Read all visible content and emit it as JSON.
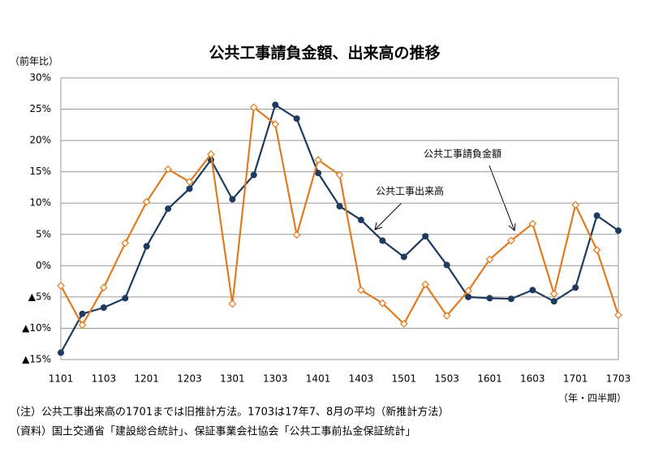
{
  "chart_data": {
    "type": "line",
    "title": "公共工事請負金額、出来高の推移",
    "y_axis_label": "（前年比）",
    "x_axis_label": "（年・四半期）",
    "notes": [
      "（注）公共工事出来高の1701までは旧推計方法。1703は17年7、8月の平均（新推計方法）",
      "（資料）国土交通省「建設総合統計」、保証事業会社協会「公共工事前払金保証統計」"
    ],
    "categories": [
      "1101",
      null,
      "1103",
      null,
      "1201",
      null,
      "1203",
      null,
      "1301",
      null,
      "1303",
      null,
      "1401",
      null,
      "1403",
      null,
      "1501",
      null,
      "1503",
      null,
      "1601",
      null,
      "1603",
      null,
      "1701",
      null,
      "1703"
    ],
    "series": [
      {
        "name": "公共工事出来高",
        "color": "#1f3a5f",
        "marker": "circle",
        "values": [
          -13.9,
          -7.7,
          -6.7,
          -5.2,
          3.1,
          9.1,
          12.3,
          16.9,
          10.6,
          14.5,
          25.7,
          23.5,
          14.8,
          9.5,
          7.3,
          4.0,
          1.4,
          4.7,
          0.1,
          -5.0,
          -5.2,
          -5.3,
          -3.9,
          -5.7,
          -3.5,
          8.0,
          5.6
        ]
      },
      {
        "name": "公共工事請負金額",
        "color": "#e07b20",
        "marker": "diamond",
        "values": [
          -3.2,
          -9.5,
          -3.5,
          3.6,
          10.2,
          15.4,
          13.4,
          17.8,
          -6.1,
          25.3,
          22.6,
          4.9,
          16.9,
          14.5,
          -3.9,
          -6.0,
          -9.3,
          -3.0,
          -8.0,
          -4.0,
          1.0,
          4.0,
          6.7,
          -4.5,
          9.7,
          2.5,
          -7.9
        ]
      }
    ],
    "ylim": [
      -15,
      30
    ],
    "yticks": [
      {
        "value": -15,
        "label": "▲15%"
      },
      {
        "value": -10,
        "label": "▲10%"
      },
      {
        "value": -5,
        "label": "▲5%"
      },
      {
        "value": 0,
        "label": "0%"
      },
      {
        "value": 5,
        "label": "5%"
      },
      {
        "value": 10,
        "label": "10%"
      },
      {
        "value": 15,
        "label": "15%"
      },
      {
        "value": 20,
        "label": "20%"
      },
      {
        "value": 25,
        "label": "25%"
      },
      {
        "value": 30,
        "label": "30%"
      }
    ],
    "grid": true
  }
}
